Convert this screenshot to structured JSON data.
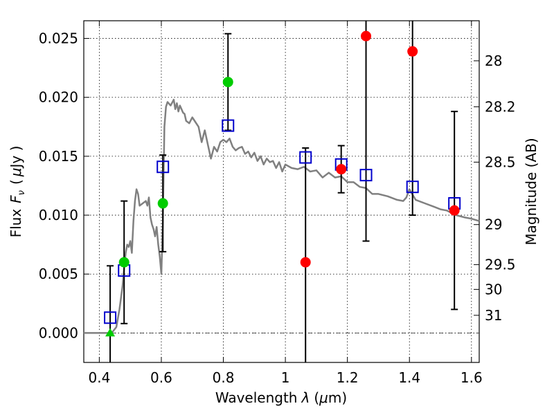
{
  "chart_data": {
    "type": "scatter",
    "xlabel_text": "Wavelength",
    "xlabel_symbol": "λ",
    "xlabel_unit_open": "(",
    "xlabel_unit_mu": "μ",
    "xlabel_unit_rest": "m)",
    "ylabel_text": "Flux",
    "ylabel_symbol": "F",
    "ylabel_sub": "ν",
    "ylabel_unit_open": "(",
    "ylabel_unit_mu": "μ",
    "ylabel_unit_rest": "Jy )",
    "y2label": "Magnitude (AB)",
    "xlim": [
      0.35,
      1.625
    ],
    "ylim": [
      -0.0025,
      0.0265
    ],
    "x_ticks": [
      {
        "v": 0.4,
        "label": "0.4"
      },
      {
        "v": 0.6,
        "label": "0.6"
      },
      {
        "v": 0.8,
        "label": "0.8"
      },
      {
        "v": 1.0,
        "label": "1"
      },
      {
        "v": 1.2,
        "label": "1.2"
      },
      {
        "v": 1.4,
        "label": "1.4"
      },
      {
        "v": 1.6,
        "label": "1.6"
      }
    ],
    "y_ticks": [
      {
        "v": 0.0,
        "label": "0.000"
      },
      {
        "v": 0.005,
        "label": "0.005"
      },
      {
        "v": 0.01,
        "label": "0.010"
      },
      {
        "v": 0.015,
        "label": "0.015"
      },
      {
        "v": 0.02,
        "label": "0.020"
      },
      {
        "v": 0.025,
        "label": "0.025"
      }
    ],
    "y2_ticks": [
      {
        "label": "28",
        "flux": 0.0231
      },
      {
        "label": "28.2",
        "flux": 0.0192
      },
      {
        "label": "28.5",
        "flux": 0.0145
      },
      {
        "label": "29",
        "flux": 0.0092
      },
      {
        "label": "29.5",
        "flux": 0.0058
      },
      {
        "label": "30",
        "flux": 0.0037
      },
      {
        "label": "31",
        "flux": 0.0015
      }
    ],
    "grid": true,
    "zero_line": true,
    "colors": {
      "model": "#808080",
      "model_photometry": "#0000cc",
      "green_points": "#00cc00",
      "red_points": "#ff0000",
      "errorbar": "#000000"
    },
    "model_sed": {
      "x": [
        0.35,
        0.44,
        0.455,
        0.465,
        0.475,
        0.48,
        0.485,
        0.49,
        0.495,
        0.5,
        0.505,
        0.51,
        0.515,
        0.52,
        0.525,
        0.53,
        0.54,
        0.55,
        0.555,
        0.56,
        0.565,
        0.57,
        0.575,
        0.58,
        0.585,
        0.59,
        0.595,
        0.6,
        0.605,
        0.61,
        0.615,
        0.62,
        0.63,
        0.64,
        0.645,
        0.65,
        0.655,
        0.66,
        0.665,
        0.67,
        0.675,
        0.68,
        0.69,
        0.7,
        0.71,
        0.72,
        0.73,
        0.74,
        0.75,
        0.76,
        0.77,
        0.78,
        0.79,
        0.8,
        0.81,
        0.82,
        0.83,
        0.84,
        0.85,
        0.86,
        0.87,
        0.88,
        0.89,
        0.9,
        0.91,
        0.92,
        0.93,
        0.94,
        0.95,
        0.96,
        0.97,
        0.98,
        0.99,
        1.0,
        1.02,
        1.04,
        1.06,
        1.08,
        1.1,
        1.12,
        1.14,
        1.16,
        1.18,
        1.2,
        1.22,
        1.24,
        1.26,
        1.28,
        1.3,
        1.33,
        1.36,
        1.38,
        1.39,
        1.4,
        1.42,
        1.45,
        1.48,
        1.5,
        1.52,
        1.55,
        1.58,
        1.6,
        1.625
      ],
      "y": [
        0.0,
        0.0,
        0.0005,
        0.002,
        0.004,
        0.0055,
        0.0068,
        0.0075,
        0.0073,
        0.0078,
        0.0068,
        0.0095,
        0.0112,
        0.0122,
        0.0118,
        0.0108,
        0.011,
        0.0112,
        0.0108,
        0.0115,
        0.0098,
        0.0092,
        0.0088,
        0.0082,
        0.009,
        0.0075,
        0.0065,
        0.005,
        0.0095,
        0.0175,
        0.0192,
        0.0196,
        0.0193,
        0.0198,
        0.019,
        0.0195,
        0.0188,
        0.0193,
        0.019,
        0.0187,
        0.0186,
        0.018,
        0.0178,
        0.0183,
        0.0179,
        0.0175,
        0.0162,
        0.0172,
        0.016,
        0.0148,
        0.0158,
        0.0154,
        0.0162,
        0.0164,
        0.0162,
        0.0165,
        0.0158,
        0.0155,
        0.0157,
        0.0158,
        0.0152,
        0.0154,
        0.0149,
        0.0153,
        0.0146,
        0.015,
        0.0143,
        0.0148,
        0.0145,
        0.0146,
        0.014,
        0.0145,
        0.0137,
        0.0143,
        0.014,
        0.0139,
        0.0141,
        0.0137,
        0.0138,
        0.0132,
        0.0136,
        0.0132,
        0.0133,
        0.0128,
        0.0128,
        0.0124,
        0.0123,
        0.0118,
        0.0118,
        0.0116,
        0.0113,
        0.0112,
        0.0115,
        0.0122,
        0.0113,
        0.011,
        0.0107,
        0.0105,
        0.0104,
        0.01,
        0.0098,
        0.0097,
        0.0095
      ]
    },
    "model_photometry": {
      "x": [
        0.435,
        0.48,
        0.605,
        0.815,
        1.065,
        1.18,
        1.26,
        1.41,
        1.545
      ],
      "y": [
        0.0013,
        0.0053,
        0.0141,
        0.0176,
        0.0149,
        0.0143,
        0.0134,
        0.0124,
        0.011
      ]
    },
    "observations": {
      "x": [
        0.435,
        0.48,
        0.605,
        0.815,
        1.065,
        1.18,
        1.26,
        1.41,
        1.545
      ],
      "y": [
        0.0,
        0.006,
        0.011,
        0.0213,
        0.006,
        0.0139,
        0.0252,
        0.0239,
        0.0104
      ],
      "err": [
        0.0057,
        0.0052,
        0.0041,
        0.0041,
        0.0097,
        0.002,
        0.0174,
        0.0139,
        0.0084
      ],
      "color_group": [
        "green",
        "green",
        "green",
        "green",
        "red",
        "red",
        "red",
        "red",
        "red"
      ],
      "marker": [
        "triangle",
        "circle",
        "circle",
        "circle",
        "circle",
        "circle",
        "circle",
        "circle",
        "circle"
      ]
    }
  }
}
